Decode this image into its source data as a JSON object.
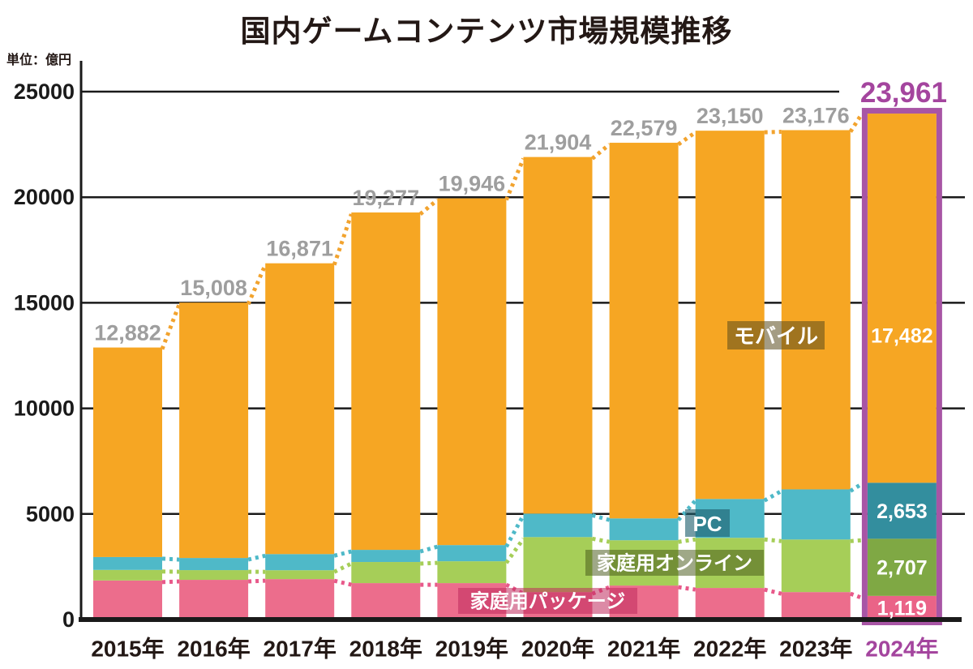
{
  "chart": {
    "title": "国内ゲームコンテンツ市場規模推移",
    "unit_label": "単位：億円"
  },
  "chart_data": {
    "type": "bar",
    "stacked": true,
    "title": "国内ゲームコンテンツ市場規模推移",
    "unit": "億円",
    "categories": [
      "2015年",
      "2016年",
      "2017年",
      "2018年",
      "2019年",
      "2020年",
      "2021年",
      "2022年",
      "2023年",
      "2024年"
    ],
    "totals": [
      12882,
      15008,
      16871,
      19277,
      19946,
      21904,
      22579,
      23150,
      23176,
      23961
    ],
    "total_labels": [
      "12,882",
      "15,008",
      "16,871",
      "19,277",
      "19,946",
      "21,904",
      "22,579",
      "23,150",
      "23,176",
      "23,961"
    ],
    "series": [
      {
        "name": "家庭用パッケージ",
        "color": "#EC6D8C",
        "highlight_color": "#EA6387",
        "line_color": "#E8598A",
        "values": [
          1850,
          1880,
          1915,
          1725,
          1725,
          1300,
          1610,
          1495,
          1300,
          1119
        ]
      },
      {
        "name": "家庭用オンライン",
        "color": "#A6CE58",
        "highlight_color": "#7FA844",
        "line_color": "#A6CE58",
        "values": [
          500,
          460,
          420,
          1000,
          1035,
          2605,
          2145,
          2375,
          2490,
          2707
        ]
      },
      {
        "name": "PC",
        "color": "#4FB9C8",
        "highlight_color": "#338E9E",
        "line_color": "#4FB9C8",
        "values": [
          610,
          575,
          765,
          575,
          767,
          1110,
          1035,
          1840,
          2375,
          2653
        ]
      },
      {
        "name": "モバイル",
        "color": "#F6A623",
        "highlight_color": "#F6A623",
        "line_color": "#F2A32E",
        "values": [
          9922,
          12093,
          13771,
          15977,
          16419,
          16889,
          17789,
          17440,
          17011,
          17482
        ]
      }
    ],
    "highlight_index": 9,
    "highlight_year": "2024年",
    "highlight_total_label": "23,961",
    "highlight_segment_labels": [
      "1,119",
      "2,707",
      "2,653",
      "17,482"
    ],
    "y_axis": {
      "ticks": [
        0,
        5000,
        10000,
        15000,
        20000,
        25000
      ],
      "max": 25000
    },
    "legend_badges": [
      {
        "label": "モバイル",
        "bg": "rgba(90,74,30,0.55)"
      },
      {
        "label": "PC",
        "bg": "rgba(30,95,110,0.62)"
      },
      {
        "label": "家庭用オンライン",
        "bg": "rgba(70,88,25,0.52)"
      },
      {
        "label": "家庭用パッケージ",
        "bg": "rgba(192,42,92,0.55)"
      }
    ],
    "colors": {
      "highlight_border": "#A855A5",
      "highlight_text": "#A4459E",
      "total_label": "#9E9E9E",
      "axis": "#1A1A1A",
      "inside_label": "#FFFFFF"
    },
    "legend_position": "overlay-on-bars",
    "grid": true
  }
}
